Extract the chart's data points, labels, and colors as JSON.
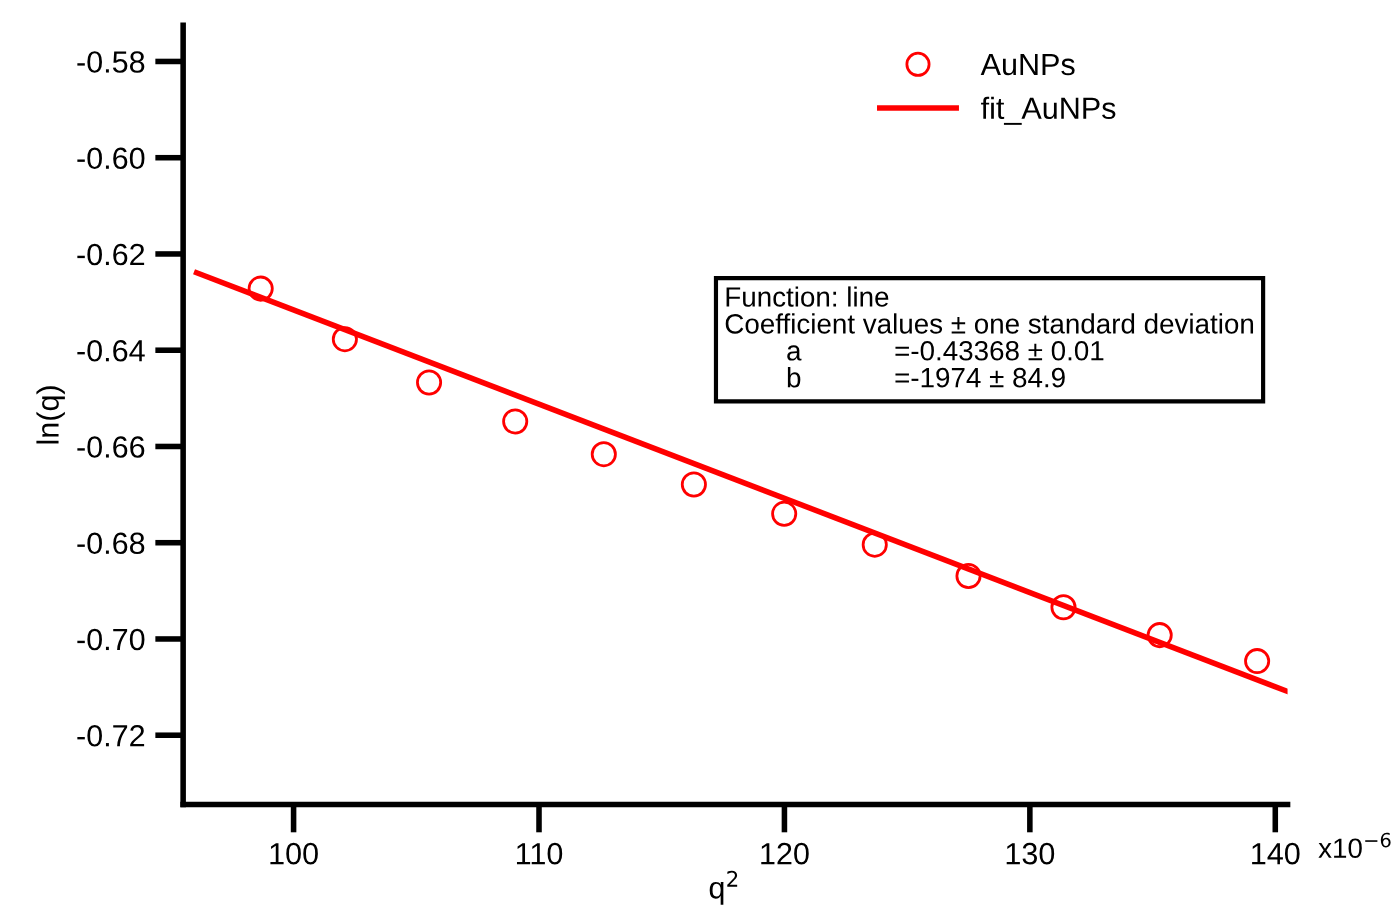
{
  "chart_data": {
    "type": "scatter",
    "xlabel": "q$^{2}$",
    "ylabel": "ln(q)",
    "series": [
      {
        "name": "AuNPs",
        "color": "#ff0000",
        "marker": "circle",
        "x": [
          98.66,
          102.09,
          105.52,
          109.03,
          112.64,
          116.31,
          119.99,
          123.68,
          127.5,
          131.37,
          135.29,
          139.26
        ],
        "values": [
          -0.6272,
          -0.6377,
          -0.6467,
          -0.6548,
          -0.6616,
          -0.6679,
          -0.674,
          -0.6804,
          -0.6869,
          -0.6934,
          -0.6992,
          -0.7046
        ]
      },
      {
        "name": "fit_AuNPs",
        "type": "line",
        "color": "#ff0000",
        "line_style": "solid",
        "x": [
          96.05,
          140.5
        ],
        "values": [
          -0.6239,
          -0.7109
        ]
      }
    ],
    "xlim": [
      95.5,
      140.5
    ],
    "ylim": [
      -0.7344,
      -0.5725
    ],
    "xticks": [
      100,
      110,
      120,
      130,
      140
    ],
    "yticks": [
      -0.58,
      {
        "value": -0.6,
        "label": "-0.60"
      },
      -0.62,
      -0.64,
      -0.66,
      -0.68,
      {
        "value": -0.7,
        "label": "-0.70"
      },
      -0.72
    ],
    "grid": false,
    "legend": "top right",
    "annotations": [
      "x10$^{−6}$",
      "Function: line",
      "Coefficient values ± one standard deviation",
      "        a            =-0.43368 ± 0.01",
      "        b            =-1974 ± 84.9"
    ]
  }
}
